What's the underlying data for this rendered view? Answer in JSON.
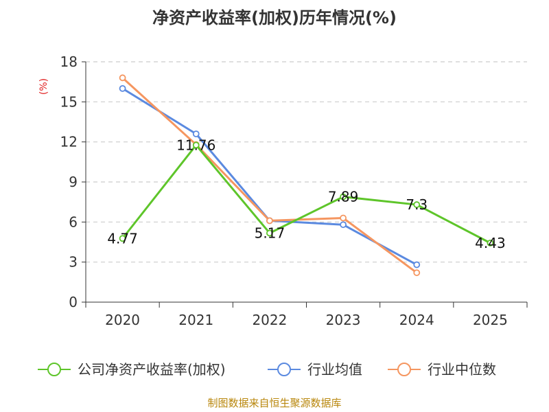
{
  "chart_data": {
    "type": "line",
    "title": "净资产收益率(加权)历年情况(%)",
    "ylabel": "(%)",
    "xlabel": "",
    "categories": [
      "2020",
      "2021",
      "2022",
      "2023",
      "2024",
      "2025"
    ],
    "ylim": [
      0,
      18
    ],
    "yticks": [
      0,
      3,
      6,
      9,
      12,
      15,
      18
    ],
    "grid": true,
    "legend_position": "bottom",
    "series": [
      {
        "name": "公司净资产收益率(加权)",
        "color": "#5ec52a",
        "values": [
          4.77,
          11.76,
          5.17,
          7.89,
          7.3,
          4.43
        ],
        "labels": [
          "4.77",
          "11.76",
          "5.17",
          "7.89",
          "7.3",
          "4.43"
        ]
      },
      {
        "name": "行业均值",
        "color": "#5b8ae0",
        "values": [
          16.0,
          12.6,
          6.1,
          5.8,
          2.8,
          null
        ]
      },
      {
        "name": "行业中位数",
        "color": "#f59660",
        "values": [
          16.8,
          11.8,
          6.1,
          6.3,
          2.2,
          null
        ]
      }
    ],
    "source": "制图数据来自恒生聚源数据库"
  }
}
